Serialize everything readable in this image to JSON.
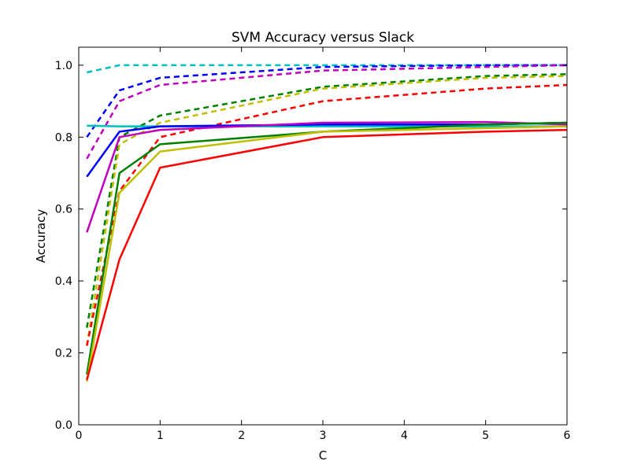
{
  "chart_data": {
    "type": "line",
    "title": "SVM Accuracy versus Slack",
    "xlabel": "C",
    "ylabel": "Accuracy",
    "xlim": [
      0,
      6
    ],
    "ylim": [
      0,
      1.05
    ],
    "xticks": [
      0,
      1,
      2,
      3,
      4,
      5,
      6
    ],
    "xtick_labels": [
      "0",
      "1",
      "2",
      "3",
      "4",
      "5",
      "6"
    ],
    "yticks": [
      0.0,
      0.2,
      0.4,
      0.6,
      0.8,
      1.0
    ],
    "ytick_labels": [
      "0.0",
      "0.2",
      "0.4",
      "0.6",
      "0.8",
      "1.0"
    ],
    "grid": false,
    "x": [
      0.1,
      0.5,
      1,
      3,
      5,
      6
    ],
    "series": [
      {
        "color": "#00bfbf",
        "dash": "dashed",
        "values": [
          0.98,
          1.0,
          1.0,
          1.0,
          1.0,
          1.0
        ]
      },
      {
        "color": "#0000ff",
        "dash": "dashed",
        "values": [
          0.8,
          0.93,
          0.965,
          0.995,
          1.0,
          1.0
        ]
      },
      {
        "color": "#bf00bf",
        "dash": "dashed",
        "values": [
          0.74,
          0.9,
          0.945,
          0.985,
          0.995,
          1.0
        ]
      },
      {
        "color": "#008000",
        "dash": "dashed",
        "values": [
          0.27,
          0.8,
          0.86,
          0.94,
          0.97,
          0.975
        ]
      },
      {
        "color": "#bfbf00",
        "dash": "dashed",
        "values": [
          0.22,
          0.78,
          0.84,
          0.935,
          0.965,
          0.97
        ]
      },
      {
        "color": "#ff0000",
        "dash": "dashed",
        "values": [
          0.22,
          0.65,
          0.8,
          0.9,
          0.935,
          0.945
        ]
      },
      {
        "color": "#00bfbf",
        "dash": "solid",
        "values": [
          0.832,
          0.83,
          0.83,
          0.83,
          0.83,
          0.83
        ]
      },
      {
        "color": "#0000ff",
        "dash": "solid",
        "values": [
          0.69,
          0.815,
          0.83,
          0.835,
          0.835,
          0.84
        ]
      },
      {
        "color": "#bf00bf",
        "dash": "solid",
        "values": [
          0.535,
          0.8,
          0.82,
          0.84,
          0.842,
          0.835
        ]
      },
      {
        "color": "#008000",
        "dash": "solid",
        "values": [
          0.14,
          0.7,
          0.78,
          0.815,
          0.835,
          0.84
        ]
      },
      {
        "color": "#bfbf00",
        "dash": "solid",
        "values": [
          0.12,
          0.645,
          0.76,
          0.815,
          0.825,
          0.83
        ]
      },
      {
        "color": "#ff0000",
        "dash": "solid",
        "values": [
          0.125,
          0.46,
          0.715,
          0.8,
          0.815,
          0.82
        ]
      }
    ]
  }
}
